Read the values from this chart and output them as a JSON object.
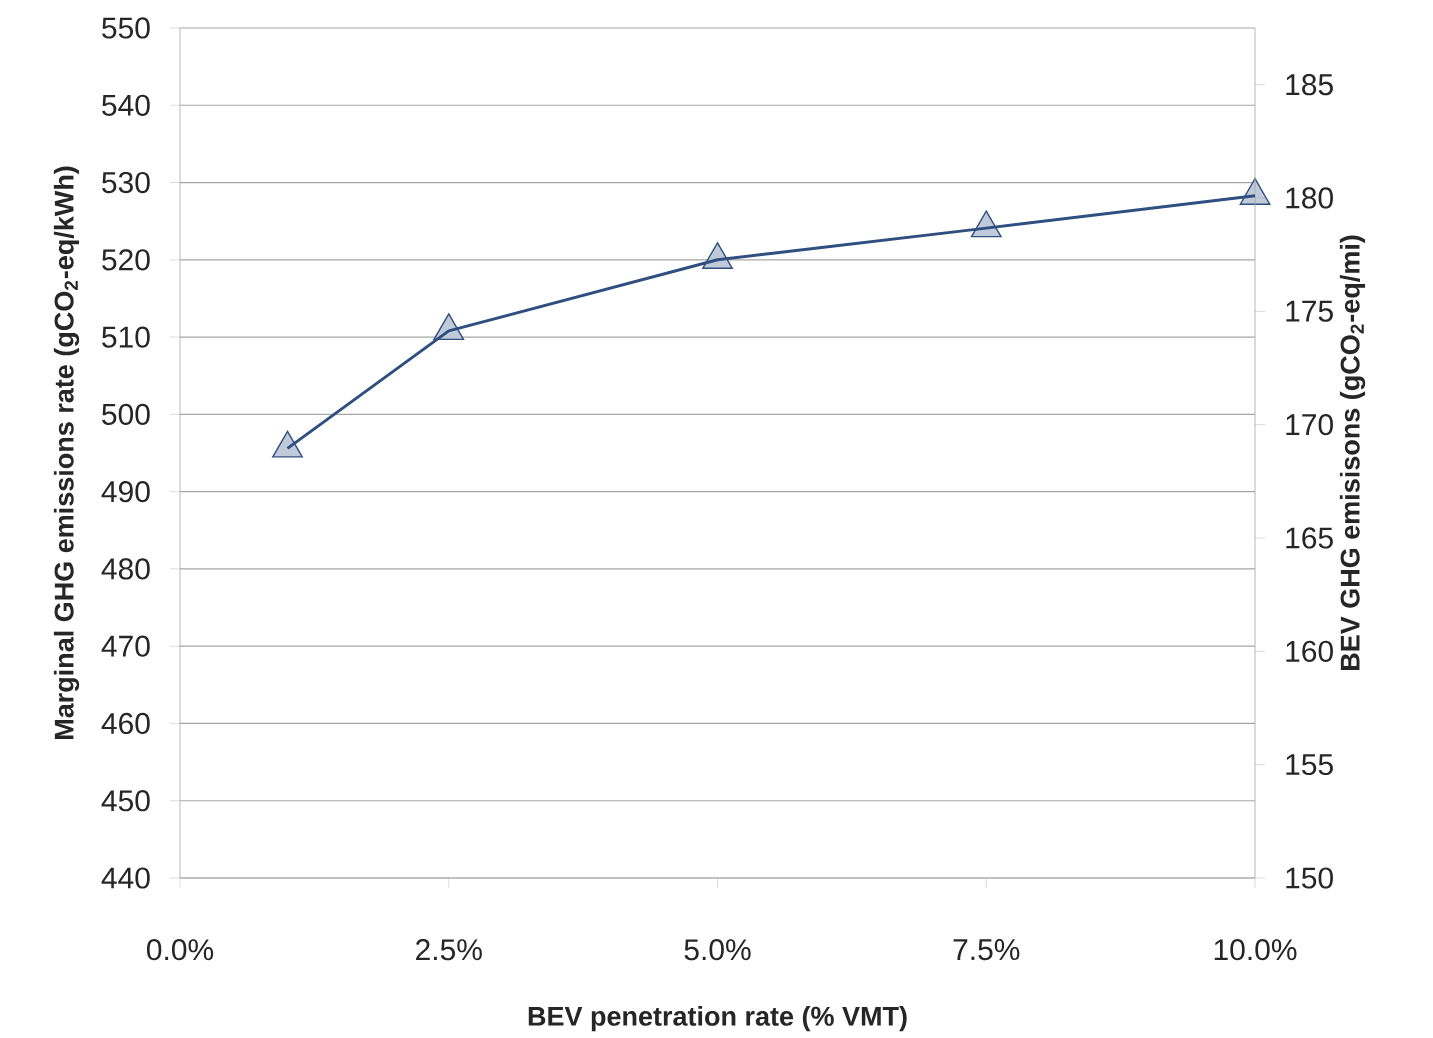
{
  "chart_data": {
    "type": "line",
    "xlabel": "BEV penetration rate (% VMT)",
    "ylabel": "Marginal GHG emissions rate (gCO$_{2}$-eq/kWh)",
    "y2label": "BEV GHG emisisons (gCO$_{2}$-eq/mi)",
    "x": [
      1,
      2.5,
      5,
      7.5,
      10
    ],
    "series": [
      {
        "color": "#2e4f7f",
        "values": [
          495.6,
          510.8,
          520.0,
          524.1,
          528.3
        ]
      }
    ],
    "xlim": [
      0,
      10
    ],
    "xticks": [
      {
        "value": 0,
        "label": "0.0%"
      },
      {
        "value": 2.5,
        "label": "2.5%"
      },
      {
        "value": 5,
        "label": "5.0%"
      },
      {
        "value": 7.5,
        "label": "7.5%"
      },
      {
        "value": 10,
        "label": "10.0%"
      }
    ],
    "ylim": [
      440,
      550
    ],
    "yticks": [
      440,
      450,
      460,
      470,
      480,
      490,
      500,
      510,
      520,
      530,
      540,
      550
    ],
    "y2lim": [
      150,
      187.5
    ],
    "y2ticks": [
      150,
      155,
      160,
      165,
      170,
      175,
      180,
      185
    ],
    "grid": "y",
    "marker": "triangle",
    "line_style": "solid"
  }
}
